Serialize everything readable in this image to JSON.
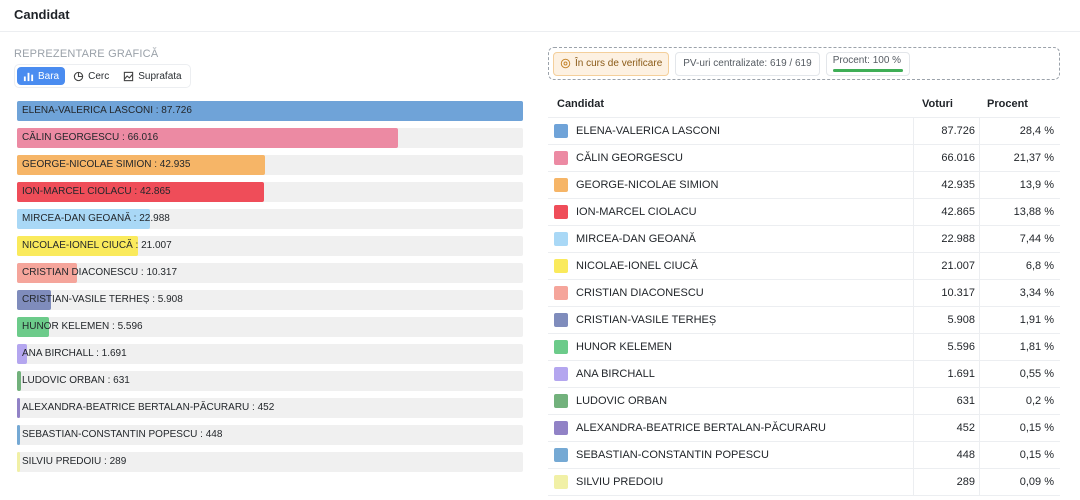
{
  "header": {
    "title": "Candidat"
  },
  "left": {
    "section_label": "REPREZENTARE GRAFICĂ",
    "view_tabs": [
      {
        "label": "Bara",
        "icon": "bar-chart-icon",
        "active": true
      },
      {
        "label": "Cerc",
        "icon": "pie-chart-icon",
        "active": false
      },
      {
        "label": "Suprafata",
        "icon": "area-chart-icon",
        "active": false
      }
    ]
  },
  "status": {
    "verification": "În curs de verificare",
    "pv": "PV-uri centralizate: 619 / 619",
    "percent_label": "Procent: 100 %",
    "percent_value": 100
  },
  "table": {
    "headers": {
      "name": "Candidat",
      "votes": "Voturi",
      "percent": "Procent"
    }
  },
  "chart_data": {
    "type": "bar",
    "orientation": "horizontal",
    "max_value": 87726,
    "candidates": [
      {
        "name": "ELENA-VALERICA LASCONI",
        "votes": 87726,
        "votes_text": "87.726",
        "percent_text": "28,4 %",
        "color": "#6fa3d8",
        "bar_label": "ELENA-VALERICA LASCONI : 87.726"
      },
      {
        "name": "CĂLIN GEORGESCU",
        "votes": 66016,
        "votes_text": "66.016",
        "percent_text": "21,37 %",
        "color": "#ec8aa3",
        "bar_label": "CĂLIN GEORGESCU : 66.016"
      },
      {
        "name": "GEORGE-NICOLAE SIMION",
        "votes": 42935,
        "votes_text": "42.935",
        "percent_text": "13,9 %",
        "color": "#f6b567",
        "bar_label": "GEORGE-NICOLAE SIMION : 42.935"
      },
      {
        "name": "ION-MARCEL CIOLACU",
        "votes": 42865,
        "votes_text": "42.865",
        "percent_text": "13,88 %",
        "color": "#ef4d59",
        "bar_label": "ION-MARCEL CIOLACU : 42.865"
      },
      {
        "name": "MIRCEA-DAN GEOANĂ",
        "votes": 22988,
        "votes_text": "22.988",
        "percent_text": "7,44 %",
        "color": "#a9d8f6",
        "bar_label": "MIRCEA-DAN GEOANĂ : 22.988"
      },
      {
        "name": "NICOLAE-IONEL CIUCĂ",
        "votes": 21007,
        "votes_text": "21.007",
        "percent_text": "6,8 %",
        "color": "#faea5c",
        "bar_label": "NICOLAE-IONEL CIUCĂ : 21.007"
      },
      {
        "name": "CRISTIAN DIACONESCU",
        "votes": 10317,
        "votes_text": "10.317",
        "percent_text": "3,34 %",
        "color": "#f5a59b",
        "bar_label": "CRISTIAN DIACONESCU : 10.317"
      },
      {
        "name": "CRISTIAN-VASILE TERHEȘ",
        "votes": 5908,
        "votes_text": "5.908",
        "percent_text": "1,91 %",
        "color": "#7f8cbc",
        "bar_label": "CRISTIAN-VASILE TERHEȘ : 5.908"
      },
      {
        "name": "HUNOR KELEMEN",
        "votes": 5596,
        "votes_text": "5.596",
        "percent_text": "1,81 %",
        "color": "#6ccb8a",
        "bar_label": "HUNOR KELEMEN : 5.596"
      },
      {
        "name": "ANA BIRCHALL",
        "votes": 1691,
        "votes_text": "1.691",
        "percent_text": "0,55 %",
        "color": "#b4a6ef",
        "bar_label": "ANA BIRCHALL : 1.691"
      },
      {
        "name": "LUDOVIC ORBAN",
        "votes": 631,
        "votes_text": "631",
        "percent_text": "0,2 %",
        "color": "#72b17c",
        "bar_label": "LUDOVIC ORBAN : 631"
      },
      {
        "name": "ALEXANDRA-BEATRICE BERTALAN-PĂCURARU",
        "votes": 452,
        "votes_text": "452",
        "percent_text": "0,15 %",
        "color": "#9182c6",
        "bar_label": "ALEXANDRA-BEATRICE BERTALAN-PĂCURARU : 452"
      },
      {
        "name": "SEBASTIAN-CONSTANTIN POPESCU",
        "votes": 448,
        "votes_text": "448",
        "percent_text": "0,15 %",
        "color": "#75a9d4",
        "bar_label": "SEBASTIAN-CONSTANTIN POPESCU : 448"
      },
      {
        "name": "SILVIU PREDOIU",
        "votes": 289,
        "votes_text": "289",
        "percent_text": "0,09 %",
        "color": "#f1f0a6",
        "bar_label": "SILVIU PREDOIU : 289"
      }
    ]
  }
}
